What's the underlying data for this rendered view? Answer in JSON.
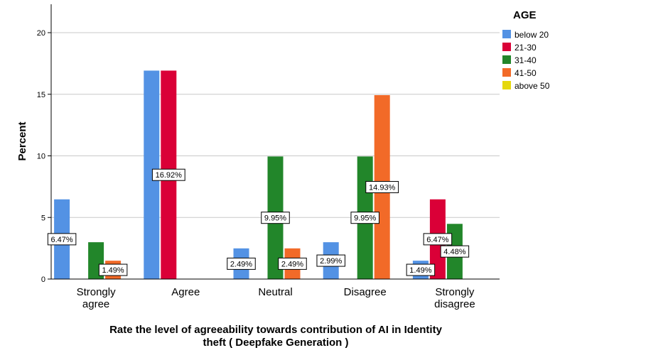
{
  "chart_data": {
    "type": "bar",
    "xlabel_lines": [
      "Rate the level of agreeability towards contribution of AI in Identity",
      "theft ( Deepfake Generation )"
    ],
    "ylabel": "Percent",
    "ylim": [
      0,
      22
    ],
    "yticks": [
      0,
      5,
      10,
      15,
      20
    ],
    "grid": true,
    "legend": {
      "title": "AGE",
      "placement": "top-right"
    },
    "categories": [
      [
        "Strongly",
        "agree"
      ],
      [
        "Agree"
      ],
      [
        "Neutral"
      ],
      [
        "Disagree"
      ],
      [
        "Strongly",
        "disagree"
      ]
    ],
    "series": [
      {
        "name": "below 20",
        "color": "#5392E4",
        "values": [
          6.47,
          16.92,
          2.49,
          2.99,
          1.49
        ],
        "labels": [
          "6.47%",
          "",
          "2.49%",
          "2.99%",
          "1.49%"
        ]
      },
      {
        "name": "21-30",
        "color": "#DA0037",
        "values": [
          0,
          16.92,
          0,
          0,
          6.47
        ],
        "labels": [
          "",
          "16.92%",
          "",
          "",
          "6.47%"
        ]
      },
      {
        "name": "31-40",
        "color": "#22862A",
        "values": [
          2.99,
          0,
          9.95,
          9.95,
          4.48
        ],
        "labels": [
          "",
          "",
          "9.95%",
          "9.95%",
          "4.48%"
        ]
      },
      {
        "name": "41-50",
        "color": "#F26A28",
        "values": [
          1.49,
          0,
          2.49,
          14.93,
          0
        ],
        "labels": [
          "1.49%",
          "",
          "2.49%",
          "14.93%",
          ""
        ]
      },
      {
        "name": "above 50",
        "color": "#E5D80E",
        "values": [
          0,
          0,
          0,
          0,
          0
        ],
        "labels": [
          "",
          "",
          "",
          "",
          ""
        ]
      }
    ]
  }
}
